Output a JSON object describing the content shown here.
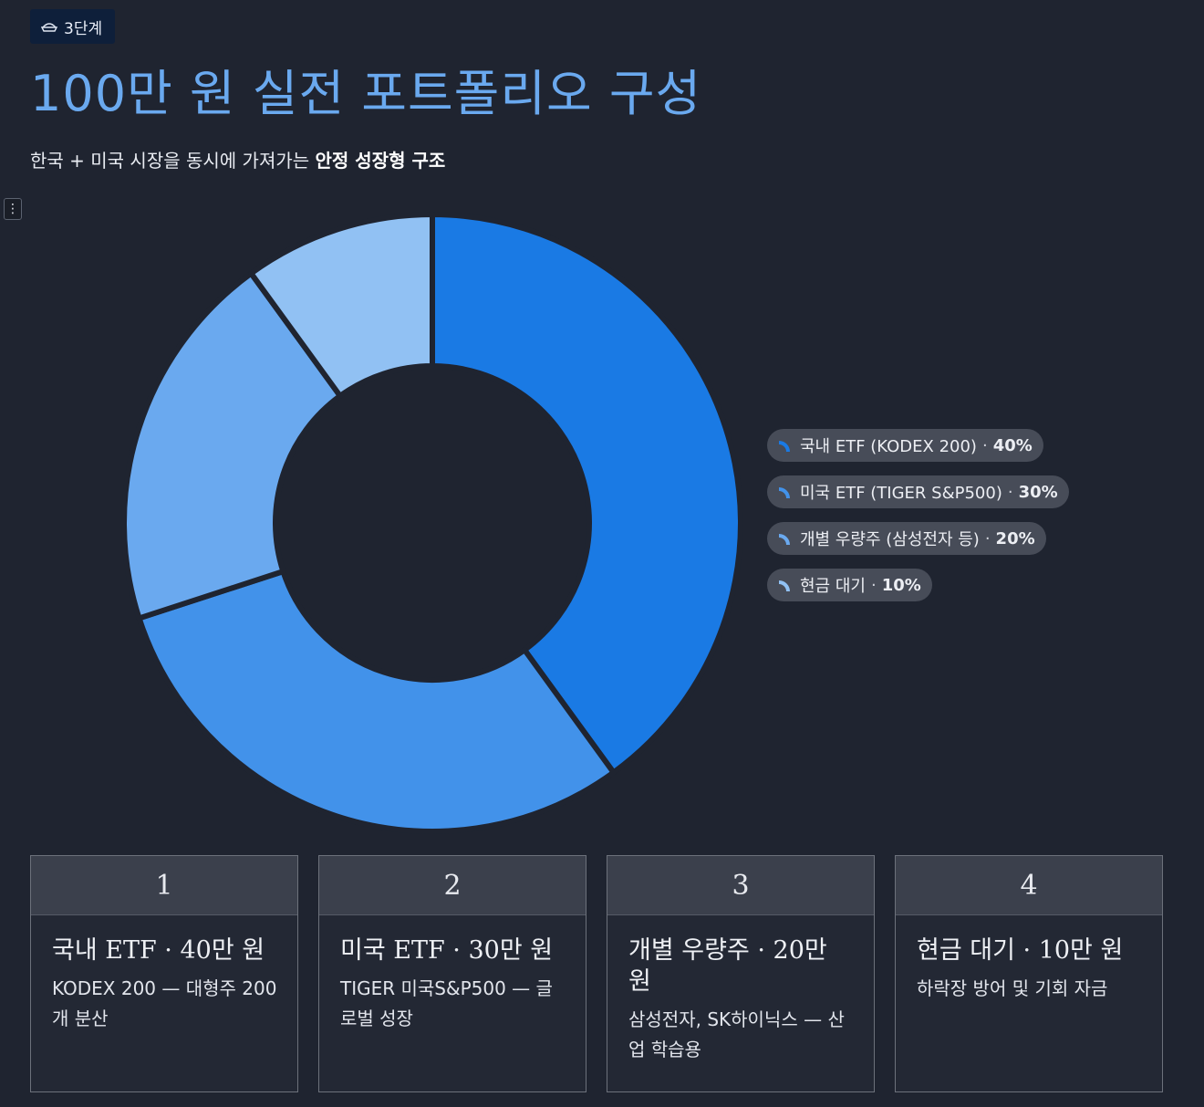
{
  "badge": {
    "label": "3단계",
    "icon": "pie-dish-icon"
  },
  "title": "100만 원 실전 포트폴리오 구성",
  "subtitle": {
    "prefix": "한국 + 미국 시장을 동시에 가져가는 ",
    "emphasis": "안정 성장형 구조"
  },
  "menu": {
    "icon": "vertical-dots-icon",
    "glyph": "⋮"
  },
  "chart_data": {
    "type": "pie",
    "donut": true,
    "start": "top",
    "categories": [
      "국내 ETF (KODEX 200)",
      "미국 ETF (TIGER S&P500)",
      "개별 우량주 (삼성전자 등)",
      "현금 대기"
    ],
    "values": [
      40,
      30,
      20,
      10
    ],
    "labels": [
      "40%",
      "30%",
      "20%",
      "10%"
    ],
    "colors": [
      "#1a7ae4",
      "#4292ea",
      "#6aa9ef",
      "#91c1f3"
    ],
    "legend_position": "right",
    "title": "",
    "xlabel": "",
    "ylabel": ""
  },
  "cards": [
    {
      "number": "1",
      "title": "국내 ETF · 40만 원",
      "desc": "KODEX 200 — 대형주 200개 분산"
    },
    {
      "number": "2",
      "title": "미국 ETF · 30만 원",
      "desc": "TIGER 미국S&P500 — 글로벌 성장"
    },
    {
      "number": "3",
      "title": "개별 우량주 · 20만 원",
      "desc": "삼성전자, SK하이닉스 — 산업 학습용"
    },
    {
      "number": "4",
      "title": "현금 대기 · 10만 원",
      "desc": "하락장 방어 및 기회 자금"
    }
  ]
}
